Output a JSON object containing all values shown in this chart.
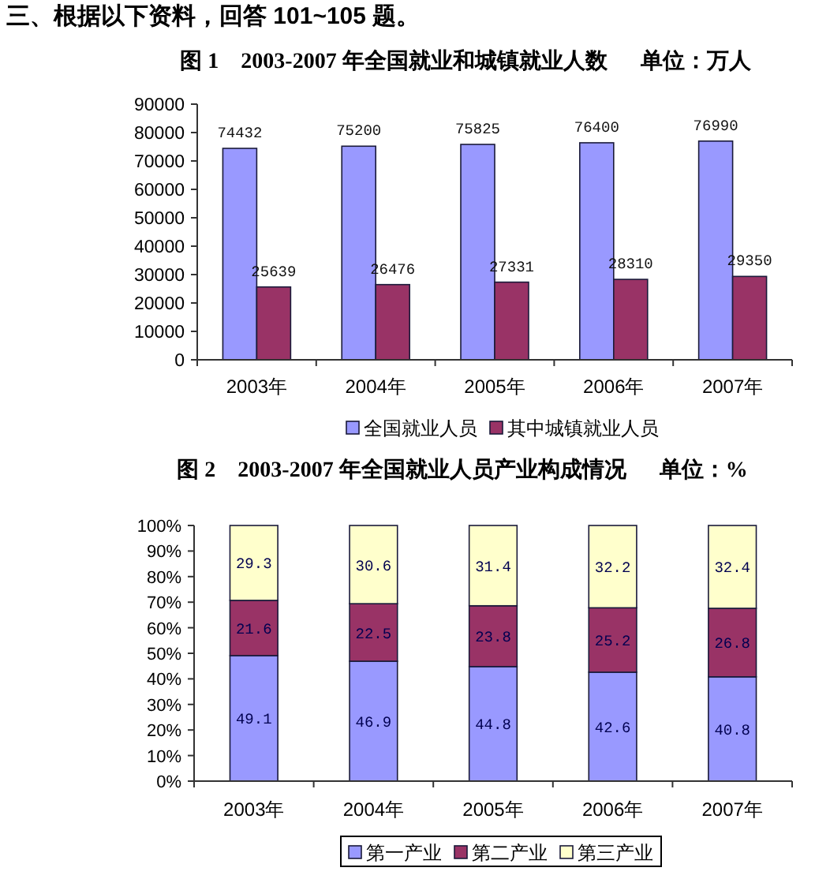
{
  "chart_data": [
    {
      "type": "bar",
      "title": "图 1    2003-2007 年全国就业和城镇就业人数      单位：万人",
      "annotations": [
        "三、根据以下资料，回答 101~105 题。"
      ],
      "categories": [
        "2003年",
        "2004年",
        "2005年",
        "2006年",
        "2007年"
      ],
      "series": [
        {
          "name": "全国就业人员",
          "color": "#9999ff",
          "values": [
            74432,
            75200,
            75825,
            76400,
            76990
          ]
        },
        {
          "name": "其中城镇就业人员",
          "color": "#993366",
          "values": [
            25639,
            26476,
            27331,
            28310,
            29350
          ]
        }
      ],
      "ylim": [
        0,
        90000
      ],
      "yticks": [
        0,
        10000,
        20000,
        30000,
        40000,
        50000,
        60000,
        70000,
        80000,
        90000
      ],
      "data_labels": true,
      "legend": "bottom"
    },
    {
      "type": "bar",
      "stacked": true,
      "title": "图 2    2003-2007 年全国就业人员产业构成情况      单位：%",
      "categories": [
        "2003年",
        "2004年",
        "2005年",
        "2006年",
        "2007年"
      ],
      "series": [
        {
          "name": "第一产业",
          "color": "#9999ff",
          "values": [
            49.1,
            46.9,
            44.8,
            42.6,
            40.8
          ]
        },
        {
          "name": "第二产业",
          "color": "#993366",
          "values": [
            21.6,
            22.5,
            23.8,
            25.2,
            26.8
          ]
        },
        {
          "name": "第三产业",
          "color": "#ffffcc",
          "values": [
            29.3,
            30.6,
            31.4,
            32.2,
            32.4
          ]
        }
      ],
      "ylim": [
        0,
        100
      ],
      "yticks": [
        {
          "value": 0,
          "label": "0%"
        },
        {
          "value": 10,
          "label": "10%"
        },
        {
          "value": 20,
          "label": "20%"
        },
        {
          "value": 30,
          "label": "30%"
        },
        {
          "value": 40,
          "label": "40%"
        },
        {
          "value": 50,
          "label": "50%"
        },
        {
          "value": 60,
          "label": "60%"
        },
        {
          "value": 70,
          "label": "70%"
        },
        {
          "value": 80,
          "label": "80%"
        },
        {
          "value": 90,
          "label": "90%"
        },
        {
          "value": 100,
          "label": "100%"
        }
      ],
      "data_labels": true,
      "legend": "bottom"
    }
  ]
}
